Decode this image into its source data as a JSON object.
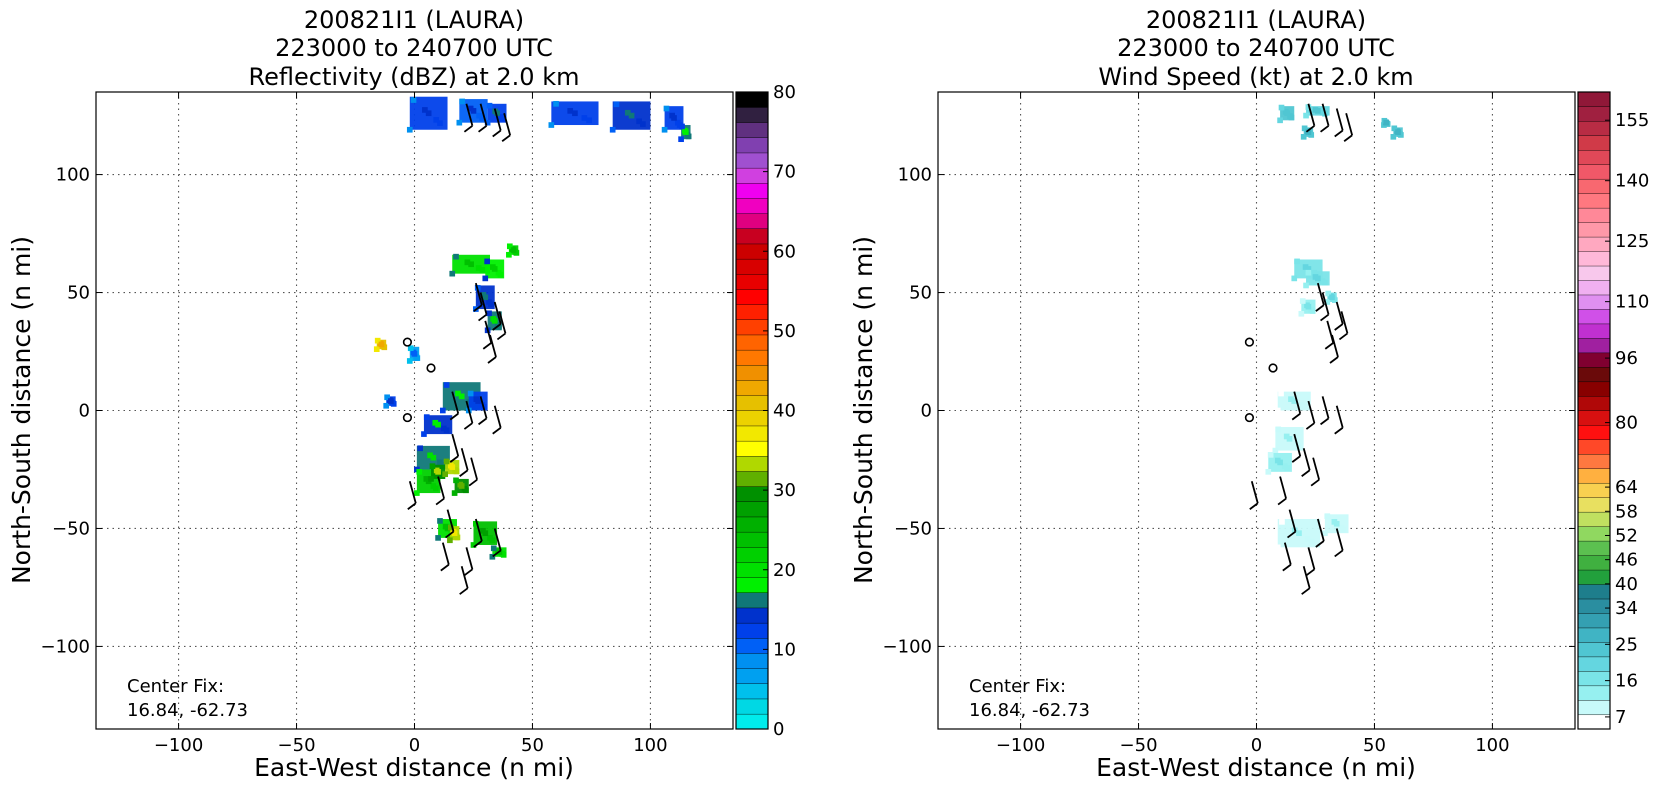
{
  "colors": {
    "reflectivity": [
      "#00ecec",
      "#00d8e4",
      "#00c0ec",
      "#00a0f0",
      "#0090f0",
      "#0060f6",
      "#0040ea",
      "#0032cc",
      "#107878",
      "#00f000",
      "#00e000",
      "#00d000",
      "#00c000",
      "#00b000",
      "#00a000",
      "#009000",
      "#60b000",
      "#b0d800",
      "#ffff00",
      "#f2e800",
      "#ecd200",
      "#e6c000",
      "#f0a800",
      "#f09000",
      "#ff7800",
      "#ff6400",
      "#ff4000",
      "#ff2000",
      "#ff0000",
      "#e80000",
      "#d80000",
      "#cc0000",
      "#c80020",
      "#e00080",
      "#f000c0",
      "#f000f0",
      "#d040e0",
      "#a050d0",
      "#8040b0",
      "#603080",
      "#302040",
      "#000000"
    ],
    "windspeed": [
      "#ffffff",
      "#c8fafa",
      "#96f0f0",
      "#7ae4e8",
      "#64d6e0",
      "#50c6d2",
      "#40b4c4",
      "#34a0b2",
      "#2a8ea0",
      "#1e7e8c",
      "#22a03c",
      "#40b040",
      "#5cc050",
      "#90d860",
      "#c0e060",
      "#e8e060",
      "#f8d050",
      "#ffb040",
      "#ff7840",
      "#ff4828",
      "#ff1010",
      "#d81010",
      "#b00808",
      "#880000",
      "#6a0a0a",
      "#800030",
      "#a020a0",
      "#c030d0",
      "#d050e8",
      "#e090f0",
      "#f0b0f0",
      "#f8c8ec",
      "#ffb8d8",
      "#ffa8c0",
      "#ff98a8",
      "#ff8898",
      "#ff7880",
      "#f86870",
      "#f05868",
      "#e04858",
      "#d03a48",
      "#b82c44",
      "#a02040",
      "#901838"
    ],
    "barbs": "#000000",
    "grid": "#555555"
  },
  "panels": [
    {
      "title_lines": [
        "200821I1 (LAURA)",
        "223000 to 240700 UTC",
        "Reflectivity (dBZ) at 2.0 km"
      ],
      "xlabel": "East-West distance (n mi)",
      "ylabel": "North-South distance (n mi)",
      "xlim": [
        -135,
        135
      ],
      "ylim": [
        -135,
        135
      ],
      "xticks": [
        -100,
        -50,
        0,
        50,
        100
      ],
      "yticks": [
        -100,
        -50,
        0,
        50,
        100
      ],
      "tick_labels": [
        "−100",
        "−50",
        "0",
        "50",
        "100"
      ],
      "annotation": [
        "Center Fix:",
        "16.84, -62.73"
      ],
      "colorbar": {
        "min": 0,
        "max": 80,
        "palette": "reflectivity",
        "ticks": [
          0,
          10,
          20,
          30,
          40,
          50,
          60,
          70,
          80
        ],
        "tick_labels": [
          "0",
          "10",
          "20",
          "30",
          "40",
          "50",
          "60",
          "70",
          "80"
        ]
      }
    },
    {
      "title_lines": [
        "200821I1 (LAURA)",
        "223000 to 240700 UTC",
        "Wind Speed (kt) at 2.0 km"
      ],
      "xlabel": "East-West distance (n mi)",
      "ylabel": "North-South distance (n mi)",
      "xlim": [
        -135,
        135
      ],
      "ylim": [
        -135,
        135
      ],
      "xticks": [
        -100,
        -50,
        0,
        50,
        100
      ],
      "yticks": [
        -100,
        -50,
        0,
        50,
        100
      ],
      "tick_labels": [
        "−100",
        "−50",
        "0",
        "50",
        "100"
      ],
      "annotation": [
        "Center Fix:",
        "16.84, -62.73"
      ],
      "colorbar": {
        "min": 4,
        "max": 162,
        "palette": "windspeed",
        "ticks": [
          7,
          16,
          25,
          34,
          40,
          46,
          52,
          58,
          64,
          80,
          96,
          110,
          125,
          140,
          155
        ],
        "tick_labels": [
          "7",
          "16",
          "25",
          "34",
          "40",
          "46",
          "52",
          "58",
          "64",
          "80",
          "96",
          "110",
          "125",
          "140",
          "155"
        ]
      }
    }
  ],
  "chart_data": [
    {
      "type": "heatmap",
      "title": "200821I1 (LAURA) 223000 to 240700 UTC Reflectivity (dBZ) at 2.0 km",
      "xlabel": "East-West distance (n mi)",
      "ylabel": "North-South distance (n mi)",
      "xlim": [
        -135,
        135
      ],
      "ylim": [
        -135,
        135
      ],
      "grid": true,
      "colorbar_range": [
        0,
        80
      ],
      "cells": [
        [
          6,
          126,
          16,
          14,
          12
        ],
        [
          25,
          127,
          12,
          10,
          11
        ],
        [
          35,
          126,
          8,
          8,
          13
        ],
        [
          68,
          126,
          20,
          10,
          12
        ],
        [
          92,
          125,
          16,
          12,
          14
        ],
        [
          110,
          124,
          8,
          10,
          12
        ],
        [
          115,
          118,
          4,
          6,
          16
        ],
        [
          24,
          62,
          16,
          8,
          20
        ],
        [
          34,
          60,
          8,
          8,
          18
        ],
        [
          42,
          68,
          4,
          4,
          21
        ],
        [
          30,
          48,
          8,
          10,
          14
        ],
        [
          34,
          38,
          6,
          8,
          17
        ],
        [
          20,
          6,
          16,
          12,
          16
        ],
        [
          27,
          4,
          8,
          8,
          12
        ],
        [
          10,
          -6,
          12,
          8,
          15
        ],
        [
          8,
          -20,
          14,
          10,
          17
        ],
        [
          6,
          -30,
          10,
          10,
          22
        ],
        [
          10,
          -26,
          6,
          6,
          30
        ],
        [
          16,
          -24,
          6,
          6,
          34
        ],
        [
          20,
          -32,
          6,
          6,
          29
        ],
        [
          14,
          -50,
          8,
          8,
          20
        ],
        [
          17,
          -52,
          4,
          6,
          34
        ],
        [
          30,
          -52,
          10,
          10,
          24
        ],
        [
          36,
          -60,
          6,
          4,
          20
        ],
        [
          -10,
          4,
          4,
          4,
          12
        ],
        [
          -14,
          28,
          4,
          4,
          40
        ],
        [
          0,
          24,
          4,
          6,
          7
        ]
      ]
    },
    {
      "type": "heatmap",
      "title": "200821I1 (LAURA) 223000 to 240700 UTC Wind Speed (kt) at 2.0 km",
      "xlabel": "East-West distance (n mi)",
      "ylabel": "North-South distance (n mi)",
      "xlim": [
        -135,
        135
      ],
      "ylim": [
        -135,
        135
      ],
      "grid": true,
      "colorbar_range": [
        7,
        155
      ],
      "cells": [
        [
          13,
          126,
          6,
          6,
          22
        ],
        [
          26,
          127,
          10,
          4,
          21
        ],
        [
          22,
          118,
          4,
          4,
          25
        ],
        [
          60,
          118,
          4,
          4,
          25
        ],
        [
          55,
          122,
          2,
          2,
          25
        ],
        [
          22,
          60,
          12,
          8,
          18
        ],
        [
          26,
          56,
          10,
          6,
          17
        ],
        [
          22,
          44,
          6,
          6,
          13
        ],
        [
          32,
          48,
          4,
          4,
          16
        ],
        [
          16,
          4,
          14,
          8,
          10
        ],
        [
          14,
          -12,
          12,
          10,
          11
        ],
        [
          10,
          -22,
          10,
          8,
          12
        ],
        [
          18,
          -52,
          18,
          12,
          10
        ],
        [
          34,
          -48,
          10,
          8,
          11
        ]
      ]
    }
  ],
  "barbs": [
    [
      22,
      130
    ],
    [
      28,
      130
    ],
    [
      34,
      128
    ],
    [
      38,
      126
    ],
    [
      26,
      54
    ],
    [
      28,
      50
    ],
    [
      34,
      46
    ],
    [
      36,
      42
    ],
    [
      30,
      38
    ],
    [
      32,
      32
    ],
    [
      16,
      8
    ],
    [
      22,
      4
    ],
    [
      28,
      6
    ],
    [
      34,
      2
    ],
    [
      16,
      -10
    ],
    [
      20,
      -16
    ],
    [
      24,
      -20
    ],
    [
      10,
      -28
    ],
    [
      -2,
      -30
    ],
    [
      14,
      -42
    ],
    [
      26,
      -46
    ],
    [
      34,
      -50
    ],
    [
      12,
      -56
    ],
    [
      22,
      -58
    ],
    [
      20,
      -66
    ]
  ],
  "circles": [
    [
      -3,
      29
    ],
    [
      7,
      18
    ],
    [
      -3,
      -3
    ]
  ]
}
